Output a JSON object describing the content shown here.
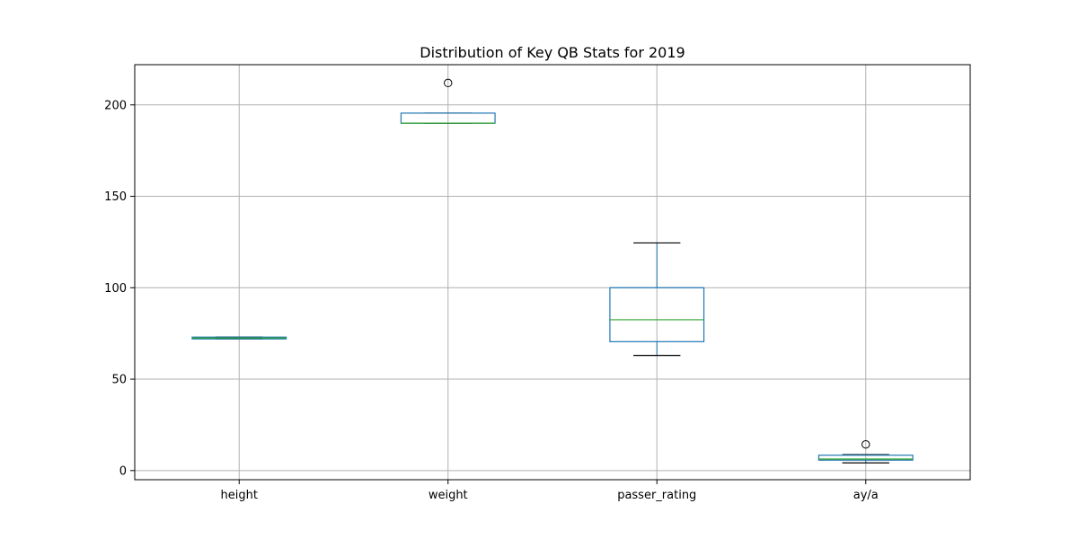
{
  "chart_data": {
    "type": "box",
    "title": "Distribution of Key QB Stats for 2019",
    "xlabel": "",
    "ylabel": "",
    "ylim": [
      -5,
      222
    ],
    "y_ticks": [
      0,
      50,
      100,
      150,
      200
    ],
    "grid": true,
    "legend": "none",
    "colors": {
      "box": "#1f77b4",
      "median": "#2ca02c",
      "whisker": "#000000",
      "grid": "#b0b0b0"
    },
    "categories": [
      "height",
      "weight",
      "passer_rating",
      "ay/a"
    ],
    "boxes": [
      {
        "category": "height",
        "whislo": 72,
        "q1": 72,
        "med": 72.5,
        "q3": 73,
        "whishi": 73,
        "fliers": []
      },
      {
        "category": "weight",
        "whislo": 190,
        "q1": 190,
        "med": 190,
        "q3": 195.5,
        "whishi": 195.5,
        "fliers": [
          212
        ]
      },
      {
        "category": "passer_rating",
        "whislo": 63,
        "q1": 70.5,
        "med": 82.5,
        "q3": 100,
        "whishi": 124.5,
        "fliers": []
      },
      {
        "category": "ay/a",
        "whislo": 4.2,
        "q1": 5.7,
        "med": 6.3,
        "q3": 8.4,
        "whishi": 8.7,
        "fliers": [
          14.3
        ]
      }
    ]
  }
}
